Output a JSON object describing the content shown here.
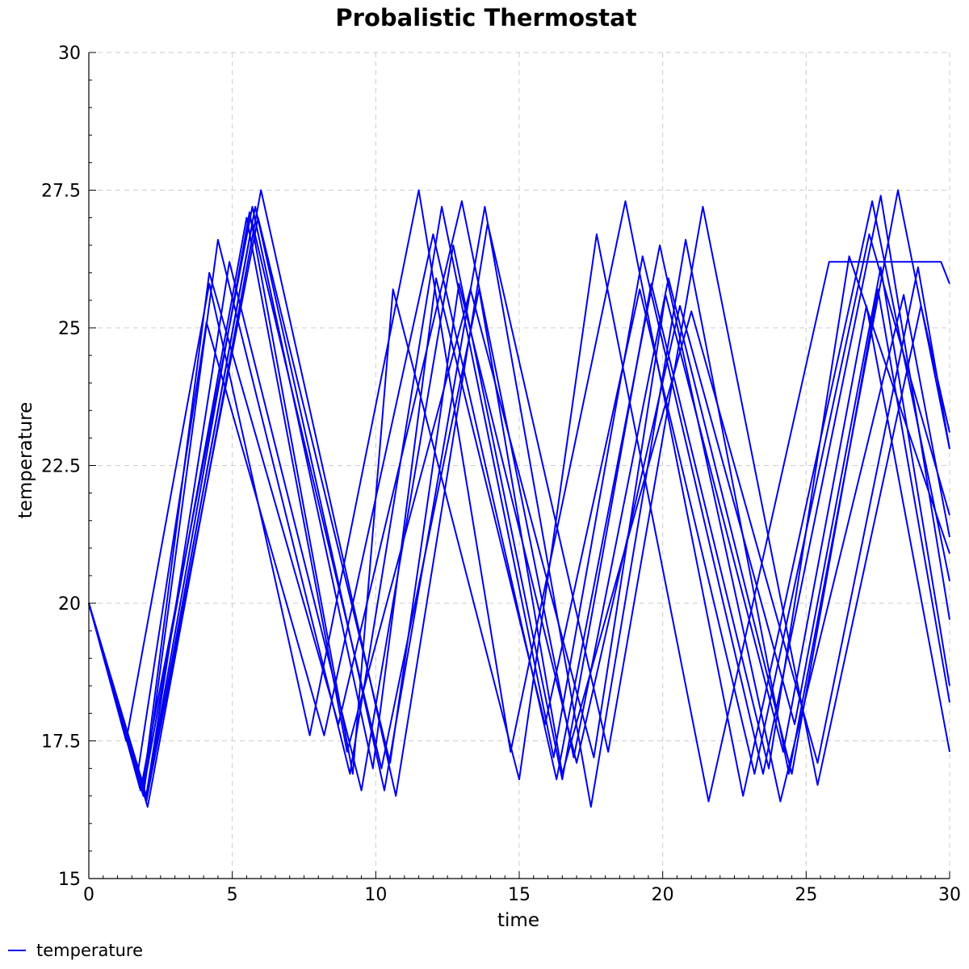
{
  "chart_data": {
    "type": "line",
    "title": "Probalistic Thermostat",
    "xlabel": "time",
    "ylabel": "temperature",
    "xlim": [
      0,
      30
    ],
    "ylim": [
      15,
      30
    ],
    "xticks": [
      "0",
      "5",
      "10",
      "15",
      "20",
      "25",
      "30"
    ],
    "yticks": [
      "15",
      "17.5",
      "20",
      "22.5",
      "25",
      "27.5",
      "30"
    ],
    "grid": true,
    "legend": {
      "position": "bottom-left",
      "entries": [
        "temperature"
      ]
    },
    "color": "#0000ee",
    "series": [
      {
        "name": "temperature",
        "x": [
          0,
          1.3,
          4.2,
          7.7,
          11.5,
          14.7,
          18.7,
          22.8,
          27.3,
          30
        ],
        "y": [
          20,
          17.5,
          25.8,
          17.6,
          27.5,
          17.3,
          27.3,
          16.5,
          27.3,
          20.4
        ]
      },
      {
        "name": "temperature",
        "x": [
          0,
          1.9,
          4.5,
          9.1,
          12.3,
          16.2,
          19.3,
          23.5,
          27.6,
          30
        ],
        "y": [
          20,
          16.5,
          26.6,
          16.9,
          27.2,
          17.2,
          26.3,
          16.9,
          27.4,
          19.7
        ]
      },
      {
        "name": "temperature",
        "x": [
          0,
          2.0,
          5.8,
          10.3,
          13.8,
          17.5,
          20.8,
          24.4,
          28.2,
          30
        ],
        "y": [
          20,
          16.4,
          27.2,
          16.6,
          27.2,
          16.3,
          26.6,
          16.9,
          27.5,
          22.8
        ]
      },
      {
        "name": "temperature",
        "x": [
          0,
          2.05,
          6.0,
          10.7,
          13.9,
          18.1,
          21.4,
          25.4,
          29.0,
          30
        ],
        "y": [
          20,
          16.3,
          27.5,
          16.5,
          26.9,
          17.3,
          27.2,
          16.7,
          25.4,
          23.1
        ]
      },
      {
        "name": "temperature",
        "x": [
          0,
          1.7,
          4.1,
          8.2,
          12.0,
          16.3,
          19.9,
          24.1,
          28.4,
          30
        ],
        "y": [
          20,
          16.9,
          25.1,
          17.6,
          26.7,
          16.8,
          26.5,
          16.4,
          25.6,
          21.2
        ]
      },
      {
        "name": "temperature",
        "x": [
          0,
          1.9,
          4.2,
          8.7,
          13.0,
          16.9,
          20.2,
          24.5,
          27.5,
          30
        ],
        "y": [
          20,
          16.7,
          26.0,
          17.8,
          27.3,
          17.2,
          25.9,
          16.9,
          25.7,
          18.2
        ]
      },
      {
        "name": "temperature",
        "x": [
          0,
          2.0,
          4.9,
          9.5,
          12.7,
          16.5,
          19.6,
          23.7,
          26.5,
          30
        ],
        "y": [
          20,
          16.5,
          26.2,
          16.6,
          26.5,
          16.8,
          25.8,
          17.0,
          26.3,
          20.9
        ]
      },
      {
        "name": "temperature",
        "x": [
          0,
          1.8,
          5.7,
          9.9,
          12.1,
          15.9,
          19.2,
          23.2,
          27.2,
          30
        ],
        "y": [
          20,
          16.6,
          27.2,
          17.0,
          25.9,
          17.8,
          25.7,
          16.9,
          26.7,
          21.6
        ]
      },
      {
        "name": "temperature",
        "x": [
          0,
          2.0,
          5.9,
          10.5,
          12.9,
          17.0,
          20.6,
          24.6,
          27.6,
          30
        ],
        "y": [
          20,
          16.4,
          27.0,
          17.1,
          25.8,
          17.1,
          25.4,
          17.8,
          26.1,
          18.5
        ]
      },
      {
        "name": "temperature",
        "x": [
          0,
          2.0,
          5.6,
          9.2,
          10.6,
          15.0,
          17.7,
          21.6,
          25.8,
          29.7,
          30
        ],
        "y": [
          20,
          16.5,
          27.1,
          16.9,
          25.7,
          16.8,
          26.7,
          16.4,
          26.2,
          26.2,
          25.8
        ]
      },
      {
        "name": "temperature",
        "x": [
          0,
          2.0,
          5.7,
          10.2,
          13.6,
          16.5,
          21.0,
          25.4,
          28.9,
          30
        ],
        "y": [
          20,
          16.4,
          26.9,
          17.0,
          25.7,
          16.9,
          25.3,
          17.1,
          26.1,
          22.8
        ]
      },
      {
        "name": "temperature",
        "x": [
          0,
          1.9,
          5.5,
          9.0,
          13.3,
          17.6,
          20.1,
          24.2,
          27.1,
          30
        ],
        "y": [
          20,
          16.6,
          27.0,
          17.3,
          25.7,
          17.2,
          25.6,
          17.3,
          25.4,
          17.3
        ]
      }
    ]
  }
}
